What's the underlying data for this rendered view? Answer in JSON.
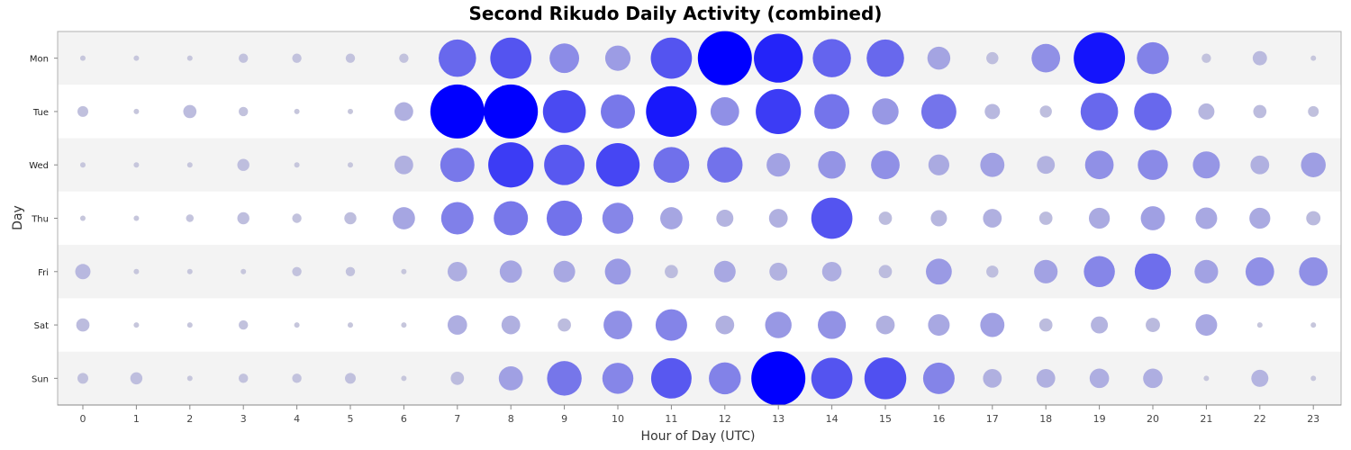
{
  "chart_data": {
    "type": "scatter",
    "subtype": "punchcard",
    "title": "Second Rikudo Daily Activity (combined)",
    "xlabel": "Hour of Day (UTC)",
    "ylabel": "Day",
    "x_categories": [
      "0",
      "1",
      "2",
      "3",
      "4",
      "5",
      "6",
      "7",
      "8",
      "9",
      "10",
      "11",
      "12",
      "13",
      "14",
      "15",
      "16",
      "17",
      "18",
      "19",
      "20",
      "21",
      "22",
      "23"
    ],
    "y_categories": [
      "Mon",
      "Tue",
      "Wed",
      "Thu",
      "Fri",
      "Sat",
      "Sun"
    ],
    "value_scale_max": 100,
    "colors": {
      "low": "#c8c8dc",
      "high": "#0000ff",
      "band": "#f3f3f3",
      "plot_bg": "#ffffff"
    },
    "grid": false,
    "legend": "none",
    "values": [
      [
        1,
        1,
        1,
        3,
        3,
        3,
        3,
        48,
        58,
        30,
        22,
        58,
        100,
        82,
        50,
        48,
        18,
        5,
        28,
        90,
        35,
        3,
        7,
        1
      ],
      [
        4,
        1,
        6,
        3,
        1,
        1,
        12,
        118,
        123,
        63,
        40,
        88,
        28,
        70,
        42,
        24,
        42,
        8,
        5,
        48,
        48,
        9,
        6,
        4
      ],
      [
        1,
        1,
        1,
        5,
        1,
        1,
        12,
        40,
        70,
        56,
        65,
        44,
        43,
        19,
        26,
        28,
        15,
        20,
        11,
        28,
        31,
        25,
        12,
        21
      ],
      [
        1,
        1,
        2,
        5,
        3,
        5,
        17,
        36,
        40,
        43,
        33,
        17,
        10,
        12,
        58,
        6,
        9,
        12,
        6,
        15,
        20,
        16,
        15,
        7
      ],
      [
        8,
        1,
        1,
        1,
        3,
        3,
        1,
        13,
        17,
        16,
        23,
        6,
        16,
        11,
        13,
        6,
        23,
        5,
        19,
        33,
        45,
        19,
        28,
        28
      ],
      [
        6,
        1,
        1,
        3,
        1,
        1,
        1,
        13,
        12,
        6,
        28,
        34,
        12,
        24,
        27,
        12,
        16,
        20,
        6,
        10,
        7,
        16,
        1,
        1
      ],
      [
        4,
        5,
        1,
        3,
        3,
        4,
        1,
        6,
        20,
        41,
        33,
        56,
        35,
        100,
        58,
        60,
        34,
        12,
        12,
        13,
        13,
        1,
        10,
        1
      ]
    ]
  }
}
